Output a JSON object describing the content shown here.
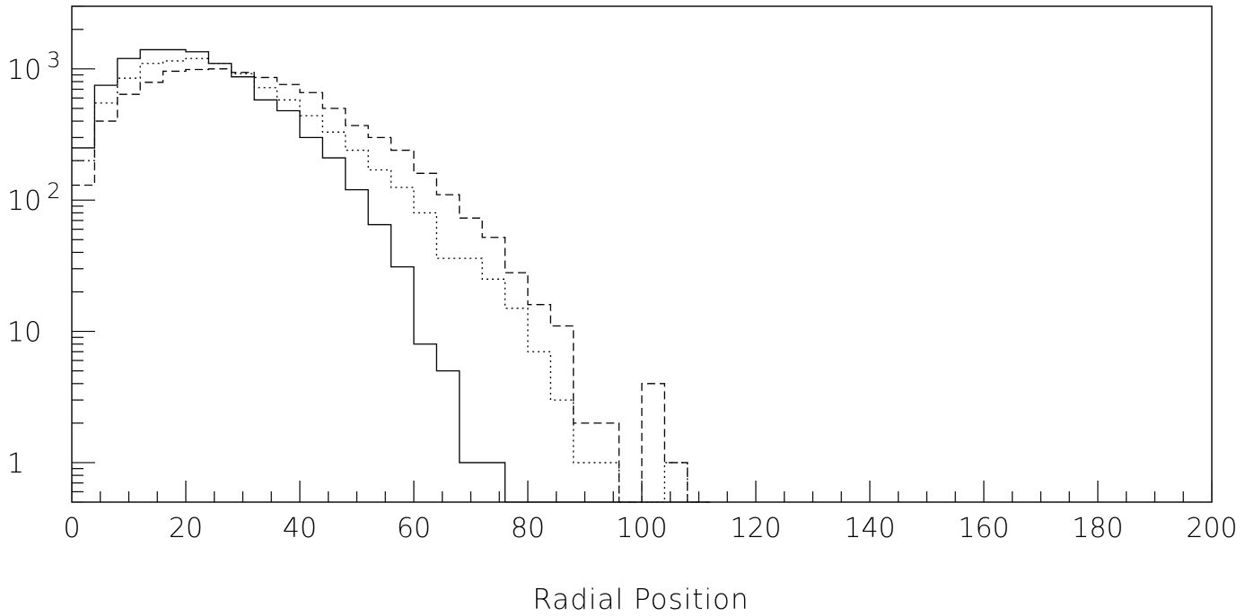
{
  "chart_data": {
    "type": "histogram",
    "title": "",
    "xlabel": "Radial Position",
    "ylabel": "",
    "xlim": [
      0,
      200
    ],
    "ylim": [
      0.5,
      3000
    ],
    "yscale": "log",
    "grid": false,
    "x_tick_labels": [
      "0",
      "20",
      "40",
      "60",
      "80",
      "100",
      "120",
      "140",
      "160",
      "180",
      "200"
    ],
    "y_tick_labels": [
      {
        "value": 1,
        "base": "1",
        "exp": ""
      },
      {
        "value": 10,
        "base": "10",
        "exp": ""
      },
      {
        "value": 100,
        "base": "10",
        "exp": "2"
      },
      {
        "value": 1000,
        "base": "10",
        "exp": "3"
      }
    ],
    "bin_width": 4,
    "bin_edges_start": 0,
    "series": [
      {
        "style": "solid",
        "values": [
          250,
          750,
          1200,
          1400,
          1400,
          1350,
          1100,
          870,
          580,
          480,
          300,
          210,
          120,
          65,
          31,
          8,
          5,
          1,
          1,
          0,
          0,
          0,
          0,
          0,
          0,
          0,
          0,
          0
        ]
      },
      {
        "style": "dotted",
        "values": [
          200,
          550,
          850,
          1100,
          1150,
          1200,
          1100,
          920,
          720,
          580,
          440,
          330,
          240,
          170,
          125,
          80,
          36,
          36,
          25,
          15,
          7,
          3,
          1,
          1,
          0,
          0,
          1,
          0
        ]
      },
      {
        "style": "dashed",
        "values": [
          130,
          400,
          640,
          790,
          960,
          990,
          1000,
          940,
          860,
          760,
          660,
          500,
          370,
          300,
          240,
          160,
          110,
          73,
          52,
          28,
          16,
          11,
          2,
          2,
          0,
          4,
          1,
          0
        ]
      }
    ]
  }
}
